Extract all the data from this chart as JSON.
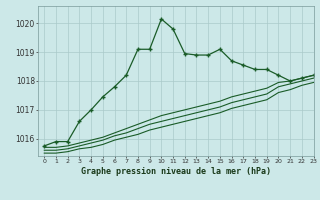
{
  "title": "Graphe pression niveau de la mer (hPa)",
  "bg_color": "#cce8e8",
  "grid_color": "#aacaca",
  "line_color": "#1a5c28",
  "xlim": [
    -0.5,
    23
  ],
  "ylim": [
    1015.4,
    1020.6
  ],
  "yticks": [
    1016,
    1017,
    1018,
    1019,
    1020
  ],
  "xticks": [
    0,
    1,
    2,
    3,
    4,
    5,
    6,
    7,
    8,
    9,
    10,
    11,
    12,
    13,
    14,
    15,
    16,
    17,
    18,
    19,
    20,
    21,
    22,
    23
  ],
  "series1": [
    1015.75,
    1015.9,
    1015.9,
    1016.6,
    1017.0,
    1017.45,
    1017.8,
    1018.2,
    1019.1,
    1019.1,
    1020.15,
    1019.8,
    1018.95,
    1018.9,
    1018.9,
    1019.1,
    1018.7,
    1018.55,
    1018.4,
    1018.4,
    1018.2,
    1018.0,
    1018.1,
    1018.2
  ],
  "series2": [
    1015.7,
    1015.7,
    1015.75,
    1015.85,
    1015.95,
    1016.05,
    1016.2,
    1016.35,
    1016.5,
    1016.65,
    1016.8,
    1016.9,
    1017.0,
    1017.1,
    1017.2,
    1017.3,
    1017.45,
    1017.55,
    1017.65,
    1017.75,
    1017.95,
    1018.0,
    1018.1,
    1018.2
  ],
  "series3": [
    1015.6,
    1015.6,
    1015.65,
    1015.75,
    1015.85,
    1015.95,
    1016.1,
    1016.2,
    1016.35,
    1016.5,
    1016.6,
    1016.7,
    1016.8,
    1016.9,
    1017.0,
    1017.1,
    1017.25,
    1017.35,
    1017.45,
    1017.55,
    1017.8,
    1017.9,
    1018.0,
    1018.1
  ],
  "series4": [
    1015.5,
    1015.5,
    1015.55,
    1015.65,
    1015.7,
    1015.8,
    1015.95,
    1016.05,
    1016.15,
    1016.3,
    1016.4,
    1016.5,
    1016.6,
    1016.7,
    1016.8,
    1016.9,
    1017.05,
    1017.15,
    1017.25,
    1017.35,
    1017.6,
    1017.7,
    1017.85,
    1017.95
  ]
}
